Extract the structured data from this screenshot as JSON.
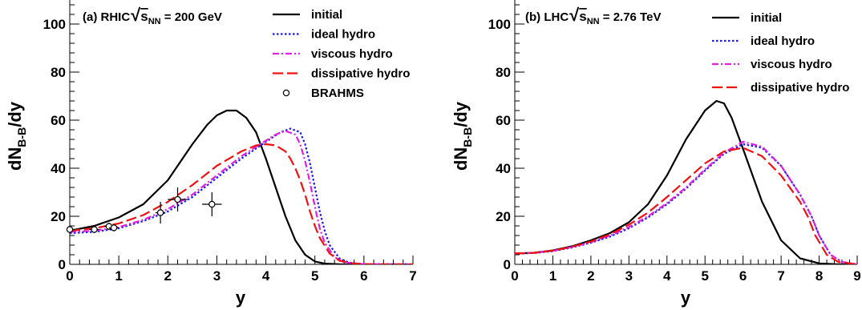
{
  "chart_data": [
    {
      "type": "line",
      "panel_label": "(a) RHIC",
      "energy_label": "= 200 GeV",
      "sqrt_symbol": "√",
      "s_base": "s",
      "s_sub": "NN",
      "xlabel": "y",
      "ylabel_base": "dN",
      "ylabel_sub": "B-B",
      "ylabel_tail": "/dy",
      "xlim": [
        0,
        7
      ],
      "ylim": [
        0,
        110
      ],
      "xticks": [
        "0",
        "1",
        "2",
        "3",
        "4",
        "5",
        "6",
        "7"
      ],
      "yticks": [
        "0",
        "20",
        "40",
        "60",
        "80",
        "100"
      ],
      "grid": false,
      "legend_position": "top-right",
      "series": [
        {
          "name": "initial",
          "color": "#000000",
          "dash": "solid",
          "x": [
            0,
            0.5,
            1.0,
            1.5,
            2.0,
            2.5,
            2.8,
            3.0,
            3.2,
            3.4,
            3.6,
            3.8,
            4.0,
            4.2,
            4.4,
            4.6,
            4.8,
            5.0,
            5.2,
            5.5,
            6.0,
            7.0
          ],
          "y": [
            14,
            16,
            19.5,
            25,
            35,
            50,
            58,
            62,
            64,
            64,
            61,
            55,
            44,
            32,
            20,
            10,
            4,
            1.2,
            0.3,
            0.05,
            0,
            0
          ]
        },
        {
          "name": "ideal hydro",
          "color": "#1a1aee",
          "dash": "dotted",
          "x": [
            0,
            0.5,
            1.0,
            1.5,
            2.0,
            2.5,
            3.0,
            3.5,
            4.0,
            4.3,
            4.5,
            4.7,
            4.8,
            4.9,
            5.0,
            5.1,
            5.2,
            5.3,
            5.5,
            5.7,
            6.0,
            7.0
          ],
          "y": [
            13,
            13.5,
            15,
            18,
            22,
            28,
            36,
            44,
            51,
            55,
            56.5,
            55,
            50,
            42,
            32,
            22,
            14,
            8,
            2.5,
            0.7,
            0.1,
            0
          ]
        },
        {
          "name": "viscous hydro",
          "color": "#e020e0",
          "dash": "dashdot",
          "x": [
            0,
            0.5,
            1.0,
            1.5,
            2.0,
            2.5,
            3.0,
            3.5,
            4.0,
            4.2,
            4.4,
            4.6,
            4.7,
            4.8,
            4.9,
            5.0,
            5.1,
            5.2,
            5.4,
            5.6,
            6.0,
            7.0
          ],
          "y": [
            13.5,
            14,
            15.5,
            18.5,
            23,
            29,
            37,
            45,
            51.5,
            54,
            55.5,
            54,
            50,
            43,
            34,
            24,
            15,
            9,
            3,
            0.8,
            0.1,
            0
          ]
        },
        {
          "name": "dissipative hydro",
          "color": "#ee1111",
          "dash": "dashed",
          "x": [
            0,
            0.5,
            1.0,
            1.5,
            2.0,
            2.5,
            3.0,
            3.5,
            3.8,
            4.0,
            4.2,
            4.4,
            4.5,
            4.6,
            4.7,
            4.8,
            4.9,
            5.0,
            5.1,
            5.3,
            5.5,
            5.8,
            6.2,
            7.0
          ],
          "y": [
            14,
            15,
            17,
            20.5,
            26,
            33,
            41,
            47,
            49.5,
            50,
            49.5,
            47,
            44,
            40,
            35,
            29,
            22,
            16,
            11,
            4.5,
            1.5,
            0.3,
            0,
            0
          ]
        }
      ],
      "points": {
        "name": "BRAHMS",
        "x": [
          0,
          0.5,
          0.8,
          0.9,
          1.85,
          2.2,
          2.9
        ],
        "y": [
          14.5,
          14.5,
          15.8,
          15.2,
          21.5,
          27,
          25
        ],
        "xerr": [
          0.1,
          0.1,
          0.1,
          0.1,
          0.1,
          0.2,
          0.2
        ],
        "yerr": [
          1.5,
          1.5,
          1.5,
          1.5,
          4.5,
          5,
          5
        ]
      }
    },
    {
      "type": "line",
      "panel_label": "(b) LHC",
      "energy_label": "= 2.76 TeV",
      "sqrt_symbol": "√",
      "s_base": "s",
      "s_sub": "NN",
      "xlabel": "y",
      "ylabel_base": "dN",
      "ylabel_sub": "B-B",
      "ylabel_tail": "/dy",
      "xlim": [
        0,
        9
      ],
      "ylim": [
        0,
        110
      ],
      "xticks": [
        "0",
        "1",
        "2",
        "3",
        "4",
        "5",
        "6",
        "7",
        "8",
        "9"
      ],
      "yticks": [
        "0",
        "20",
        "40",
        "60",
        "80",
        "100"
      ],
      "grid": false,
      "legend_position": "top-right",
      "series": [
        {
          "name": "initial",
          "color": "#000000",
          "dash": "solid",
          "x": [
            0,
            0.5,
            1.0,
            1.5,
            2.0,
            2.5,
            3.0,
            3.5,
            4.0,
            4.5,
            5.0,
            5.3,
            5.5,
            5.7,
            6.0,
            6.5,
            7.0,
            7.5,
            8.0,
            8.5,
            9.0
          ],
          "y": [
            4.5,
            4.8,
            5.8,
            7.5,
            10,
            13,
            17.5,
            25,
            37,
            52,
            64,
            68,
            67,
            61,
            48,
            26,
            10,
            2.5,
            0.4,
            0,
            0
          ]
        },
        {
          "name": "ideal hydro",
          "color": "#1a1aee",
          "dash": "dotted",
          "x": [
            0,
            0.5,
            1.0,
            1.5,
            2.0,
            2.5,
            3.0,
            3.5,
            4.0,
            4.5,
            5.0,
            5.5,
            6.0,
            6.5,
            7.0,
            7.5,
            7.8,
            8.0,
            8.3,
            8.6,
            9.0
          ],
          "y": [
            4.5,
            4.7,
            5.5,
            7,
            9,
            11.5,
            15,
            19.5,
            25,
            31.5,
            39,
            46,
            50,
            48.5,
            41,
            29,
            20,
            12,
            4,
            1,
            0
          ]
        },
        {
          "name": "viscous hydro",
          "color": "#e020e0",
          "dash": "dashdot",
          "x": [
            0,
            0.5,
            1.0,
            1.5,
            2.0,
            2.5,
            3.0,
            3.5,
            4.0,
            4.5,
            5.0,
            5.5,
            6.0,
            6.5,
            7.0,
            7.5,
            7.8,
            8.0,
            8.3,
            8.6,
            9.0
          ],
          "y": [
            4.5,
            4.8,
            5.6,
            7.2,
            9.2,
            12,
            15.5,
            20,
            25.5,
            32,
            39.5,
            46.5,
            51,
            49,
            41,
            29,
            20,
            12,
            4,
            1,
            0
          ]
        },
        {
          "name": "dissipative hydro",
          "color": "#ee1111",
          "dash": "dashed",
          "x": [
            0,
            0.5,
            1.0,
            1.5,
            2.0,
            2.5,
            3.0,
            3.5,
            4.0,
            4.5,
            5.0,
            5.5,
            6.0,
            6.5,
            7.0,
            7.5,
            7.7,
            7.9,
            8.2,
            8.5,
            9.0
          ],
          "y": [
            4.5,
            4.8,
            5.7,
            7.3,
            9.5,
            12.5,
            16.5,
            21.5,
            28,
            35,
            42,
            47,
            48.5,
            45,
            37,
            26,
            20,
            12,
            4,
            1,
            0
          ]
        }
      ]
    }
  ]
}
